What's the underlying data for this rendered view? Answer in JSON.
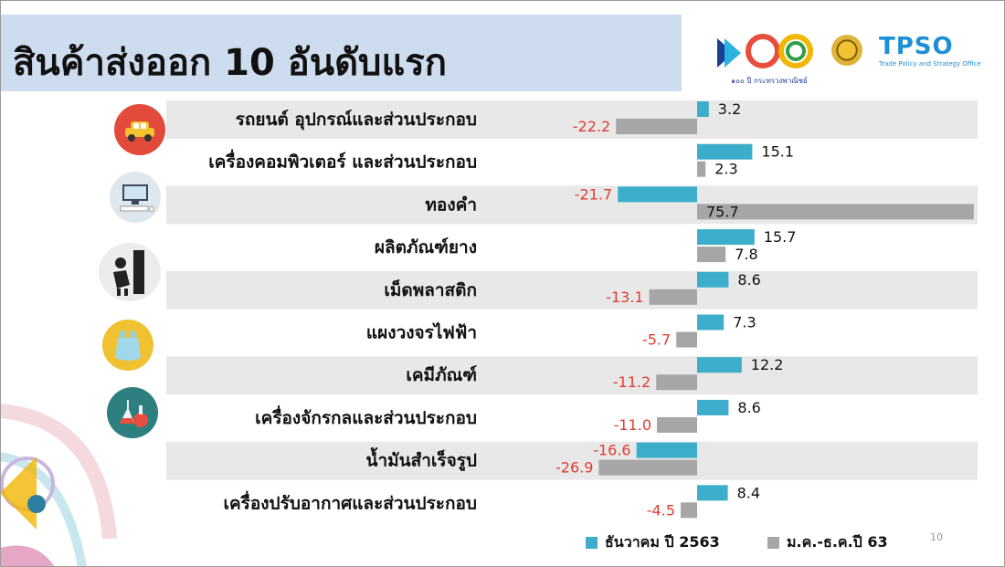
{
  "title": "สินค้าส่งออก 10 อันดับแรก",
  "logos": {
    "moc_sub": "๑๐๐ ปี กระทรวงพาณิชย์",
    "tpso": "TPSO",
    "tpso_sub": "Trade Policy and Strategy Office"
  },
  "page_number": "10",
  "colors": {
    "series1": "#3caecb",
    "series2": "#a6a6a6",
    "negative_label": "#e03c31",
    "row_band": "#e8e8e8"
  },
  "icons": [
    "car-icon",
    "computer-icon",
    "rubber-tapping-icon",
    "plastic-bag-icon",
    "chemical-flask-icon"
  ],
  "chart_data": {
    "type": "bar",
    "orientation": "horizontal",
    "categories": [
      "รถยนต์ อุปกรณ์และส่วนประกอบ",
      "เครื่องคอมพิวเตอร์ และส่วนประกอบ",
      "ทองคำ",
      "ผลิตภัณฑ์ยาง",
      "เม็ดพลาสติก",
      "แผงวงจรไฟฟ้า",
      "เคมีภัณฑ์",
      "เครื่องจักรกลและส่วนประกอบ",
      "น้ำมันสำเร็จรูป",
      "เครื่องปรับอากาศและส่วนประกอบ"
    ],
    "series": [
      {
        "name": "ธันวาคม ปี 2563",
        "values": [
          3.2,
          15.1,
          -21.7,
          15.7,
          8.6,
          7.3,
          12.2,
          8.6,
          -16.6,
          8.4
        ],
        "labels": [
          "3.2",
          "15.1",
          "-21.7",
          "15.7",
          "8.6",
          "7.3",
          "12.2",
          "8.6",
          "-16.6",
          "8.4"
        ]
      },
      {
        "name": "ม.ค.-ธ.ค.ปี 63",
        "values": [
          -22.2,
          2.3,
          75.7,
          7.8,
          -13.1,
          -5.7,
          -11.2,
          -11.0,
          -26.9,
          -4.5
        ],
        "labels": [
          "-22.2",
          "2.3",
          "75.7",
          "7.8",
          "-13.1",
          "-5.7",
          "-11.2",
          "-11.0",
          "-26.9",
          "-4.5"
        ]
      }
    ],
    "grid": false,
    "legend_position": "bottom"
  }
}
